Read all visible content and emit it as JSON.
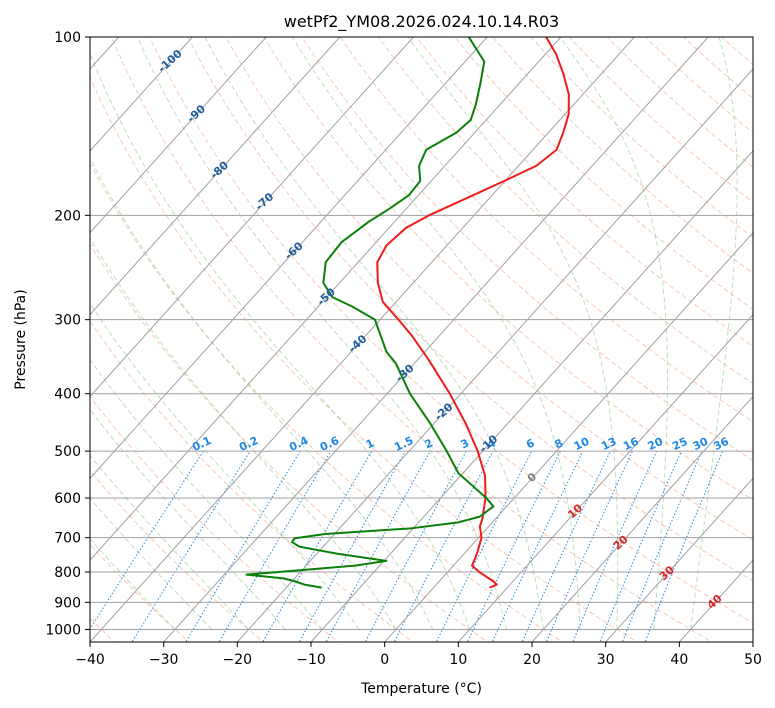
{
  "chart_data": {
    "type": "line",
    "diagram": "skew-T log-p",
    "title": "wetPf2_YM08.2026.024.10.14.R03",
    "xlabel": "Temperature (°C)",
    "ylabel": "Pressure (hPa)",
    "xlim": [
      -40,
      50
    ],
    "ylim": [
      1050,
      100
    ],
    "x_ticks": [
      "−40",
      "−30",
      "−20",
      "−10",
      "0",
      "10",
      "20",
      "30",
      "40",
      "50"
    ],
    "y_ticks": [
      {
        "p": 100,
        "label": "100"
      },
      {
        "p": 200,
        "label": "200"
      },
      {
        "p": 300,
        "label": "300"
      },
      {
        "p": 400,
        "label": "400"
      },
      {
        "p": 500,
        "label": "500"
      },
      {
        "p": 600,
        "label": "600"
      },
      {
        "p": 700,
        "label": "700"
      },
      {
        "p": 800,
        "label": "800"
      },
      {
        "p": 900,
        "label": "900"
      },
      {
        "p": 1000,
        "label": "1000"
      }
    ],
    "grid": true,
    "colors": {
      "temperature": "#ee1c1c",
      "dewpoint": "#0a800a",
      "isotherm": "#a0a0a0",
      "dry_adiabat": "#f4a582",
      "moist_adiabat": "#8fc88f",
      "mixing_ratio": "#1e88e5",
      "isotherm_label": "#1f5fa0"
    },
    "series": [
      {
        "name": "Temperature",
        "points": [
          {
            "p": 850,
            "t": 7.6
          },
          {
            "p": 840,
            "t": 8.2
          },
          {
            "p": 830,
            "t": 7.4
          },
          {
            "p": 800,
            "t": 4.3
          },
          {
            "p": 780,
            "t": 2.5
          },
          {
            "p": 760,
            "t": 2.1
          },
          {
            "p": 740,
            "t": 1.6
          },
          {
            "p": 700,
            "t": 0.4
          },
          {
            "p": 670,
            "t": -1.2
          },
          {
            "p": 650,
            "t": -1.8
          },
          {
            "p": 600,
            "t": -3.9
          },
          {
            "p": 550,
            "t": -6.7
          },
          {
            "p": 500,
            "t": -10.7
          },
          {
            "p": 450,
            "t": -15.6
          },
          {
            "p": 400,
            "t": -21.5
          },
          {
            "p": 350,
            "t": -28.6
          },
          {
            "p": 320,
            "t": -33.6
          },
          {
            "p": 300,
            "t": -37.5
          },
          {
            "p": 280,
            "t": -41.8
          },
          {
            "p": 260,
            "t": -44.8
          },
          {
            "p": 240,
            "t": -47.4
          },
          {
            "p": 225,
            "t": -48.2
          },
          {
            "p": 210,
            "t": -47.7
          },
          {
            "p": 200,
            "t": -46.1
          },
          {
            "p": 185,
            "t": -42.6
          },
          {
            "p": 175,
            "t": -40.1
          },
          {
            "p": 165,
            "t": -37.6
          },
          {
            "p": 155,
            "t": -36.8
          },
          {
            "p": 145,
            "t": -38.0
          },
          {
            "p": 135,
            "t": -39.5
          },
          {
            "p": 125,
            "t": -41.9
          },
          {
            "p": 115,
            "t": -45.3
          },
          {
            "p": 107,
            "t": -48.5
          },
          {
            "p": 100,
            "t": -52.0
          }
        ]
      },
      {
        "name": "Dewpoint",
        "points": [
          {
            "p": 850,
            "t": -15.2
          },
          {
            "p": 840,
            "t": -17.9
          },
          {
            "p": 830,
            "t": -19.5
          },
          {
            "p": 820,
            "t": -21.5
          },
          {
            "p": 808,
            "t": -27.0
          },
          {
            "p": 795,
            "t": -20.5
          },
          {
            "p": 780,
            "t": -13.2
          },
          {
            "p": 766,
            "t": -9.7
          },
          {
            "p": 745,
            "t": -17.2
          },
          {
            "p": 725,
            "t": -23.2
          },
          {
            "p": 712,
            "t": -24.8
          },
          {
            "p": 702,
            "t": -24.9
          },
          {
            "p": 690,
            "t": -21.3
          },
          {
            "p": 675,
            "t": -10.3
          },
          {
            "p": 660,
            "t": -4.7
          },
          {
            "p": 645,
            "t": -2.4
          },
          {
            "p": 620,
            "t": -1.8
          },
          {
            "p": 600,
            "t": -3.8
          },
          {
            "p": 575,
            "t": -6.8
          },
          {
            "p": 545,
            "t": -10.6
          },
          {
            "p": 500,
            "t": -14.9
          },
          {
            "p": 450,
            "t": -20.4
          },
          {
            "p": 400,
            "t": -26.9
          },
          {
            "p": 355,
            "t": -32.6
          },
          {
            "p": 340,
            "t": -35.2
          },
          {
            "p": 300,
            "t": -40.7
          },
          {
            "p": 285,
            "t": -45.4
          },
          {
            "p": 275,
            "t": -49.2
          },
          {
            "p": 260,
            "t": -52.2
          },
          {
            "p": 240,
            "t": -54.4
          },
          {
            "p": 222,
            "t": -54.7
          },
          {
            "p": 205,
            "t": -53.5
          },
          {
            "p": 195,
            "t": -52.3
          },
          {
            "p": 185,
            "t": -51.3
          },
          {
            "p": 175,
            "t": -51.5
          },
          {
            "p": 165,
            "t": -53.5
          },
          {
            "p": 155,
            "t": -54.5
          },
          {
            "p": 145,
            "t": -52.5
          },
          {
            "p": 138,
            "t": -52.1
          },
          {
            "p": 130,
            "t": -53.3
          },
          {
            "p": 120,
            "t": -55.2
          },
          {
            "p": 110,
            "t": -57.4
          },
          {
            "p": 100,
            "t": -62.5
          }
        ]
      }
    ],
    "isotherm_labels": [
      {
        "t": -100,
        "p": 110,
        "label": "-100"
      },
      {
        "t": -90,
        "p": 135,
        "label": "-90"
      },
      {
        "t": -80,
        "p": 168,
        "label": "-80"
      },
      {
        "t": -70,
        "p": 190,
        "label": "-70"
      },
      {
        "t": -60,
        "p": 230,
        "label": "-60"
      },
      {
        "t": -50,
        "p": 275,
        "label": "-50"
      },
      {
        "t": -40,
        "p": 330,
        "label": "-40"
      },
      {
        "t": -30,
        "p": 370,
        "label": "-30"
      },
      {
        "t": -20,
        "p": 430,
        "label": "-20"
      },
      {
        "t": -10,
        "p": 487,
        "label": "-10"
      },
      {
        "t": 0,
        "p": 555,
        "label": "0"
      },
      {
        "t": 10,
        "p": 633,
        "label": "10"
      },
      {
        "t": 20,
        "p": 715,
        "label": "20"
      },
      {
        "t": 30,
        "p": 805,
        "label": "30"
      },
      {
        "t": 40,
        "p": 900,
        "label": "40"
      }
    ],
    "mixing_ratios": [
      {
        "w": 0.1,
        "label": "0.1"
      },
      {
        "w": 0.2,
        "label": "0.2"
      },
      {
        "w": 0.4,
        "label": "0.4"
      },
      {
        "w": 0.6,
        "label": "0.6"
      },
      {
        "w": 1,
        "label": "1"
      },
      {
        "w": 1.5,
        "label": "1.5"
      },
      {
        "w": 2,
        "label": "2"
      },
      {
        "w": 3,
        "label": "3"
      },
      {
        "w": 4,
        "label": "4"
      },
      {
        "w": 6,
        "label": "6"
      },
      {
        "w": 8,
        "label": "8"
      },
      {
        "w": 10,
        "label": "10"
      },
      {
        "w": 13,
        "label": "13"
      },
      {
        "w": 16,
        "label": "16"
      },
      {
        "w": 20,
        "label": "20"
      },
      {
        "w": 25,
        "label": "25"
      },
      {
        "w": 30,
        "label": "30"
      },
      {
        "w": 36,
        "label": "36"
      }
    ]
  }
}
